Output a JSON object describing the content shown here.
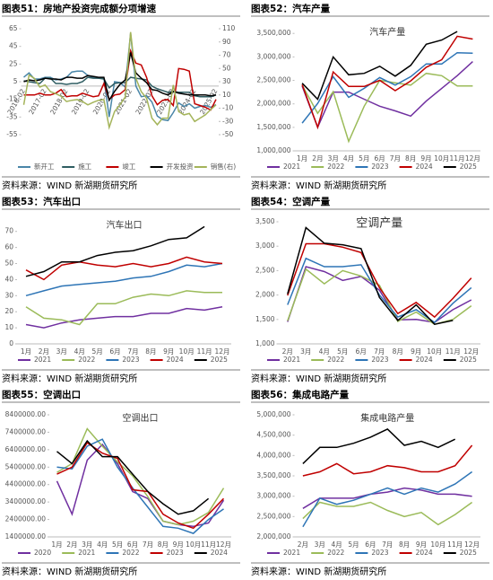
{
  "chart_data": [
    {
      "type": "line",
      "caption": "图表51：房地产投资完成额分项增速",
      "source": "资料来源：WIND 新湖期货研究所",
      "categories": [
        "2016-02",
        null,
        null,
        null,
        "2017-02",
        null,
        null,
        null,
        "2018-02",
        null,
        null,
        null,
        "2019-02",
        null,
        null,
        null,
        "2020-02",
        null,
        null,
        null,
        "2021-02",
        null,
        null,
        null,
        "2022-02",
        null,
        null,
        null,
        "2023-02",
        null,
        null,
        null,
        "2024-02",
        null,
        null,
        null,
        "2025-02"
      ],
      "series": [
        {
          "name": "新开工",
          "color": "#4a86a8",
          "values": [
            10,
            15,
            8,
            8,
            10,
            10,
            7,
            8,
            10,
            16,
            17,
            17,
            12,
            10,
            9,
            9,
            -35,
            5,
            4,
            -1,
            60,
            0,
            -12,
            -11,
            -18,
            -34,
            -38,
            -39,
            -30,
            -19,
            -23,
            -20,
            -25,
            -23,
            -22,
            -24,
            -21
          ]
        },
        {
          "name": "施工",
          "color": "#2f5d62",
          "values": [
            6,
            5,
            4,
            3,
            9,
            9,
            3,
            3,
            2,
            3,
            3,
            5,
            10,
            9,
            9,
            8,
            -2,
            3,
            4,
            4,
            10,
            9,
            8,
            7,
            0,
            -3,
            -5,
            -7,
            -6,
            -7,
            -7,
            -7,
            -11,
            -12,
            -12,
            -12,
            -10
          ]
        },
        {
          "name": "竣工",
          "color": "#c00000",
          "values": [
            -10,
            -10,
            -10,
            -8,
            -10,
            -10,
            -8,
            -4,
            -12,
            -11,
            -11,
            -8,
            -10,
            -12,
            -11,
            3,
            -15,
            -10,
            -9,
            -4,
            40,
            26,
            24,
            10,
            -11,
            -21,
            -16,
            -15,
            -22,
            20,
            19,
            17,
            -20,
            -22,
            -24,
            -27,
            -15
          ]
        },
        {
          "name": "开发投资",
          "color": "#000000",
          "values": [
            5,
            7,
            6,
            7,
            9,
            8,
            8,
            7,
            10,
            10,
            9,
            9,
            12,
            11,
            10,
            10,
            -16,
            -6,
            2,
            7,
            38,
            15,
            9,
            4,
            -4,
            -5,
            -8,
            -10,
            -6,
            -8,
            -9,
            -10,
            -10,
            -10,
            -10,
            -11,
            -10
          ]
        },
        {
          "name": "销售(右)",
          "color": "#a4b45a",
          "axis": "y2",
          "values": [
            -5,
            40,
            35,
            22,
            25,
            15,
            12,
            8,
            0,
            2,
            3,
            0,
            -5,
            -1,
            2,
            3,
            -39,
            -15,
            -5,
            7,
            105,
            35,
            15,
            5,
            -25,
            -35,
            -25,
            -25,
            25,
            -15,
            -20,
            -18,
            -30,
            -25,
            -20,
            -12,
            -5
          ]
        }
      ],
      "ylim": [
        -55,
        65
      ],
      "yticks": [
        65,
        45,
        25,
        5,
        -15,
        -35,
        -55
      ],
      "y2lim": [
        -50,
        110
      ],
      "y2ticks": [
        110,
        90,
        70,
        50,
        30,
        10,
        -10,
        -30,
        -50
      ]
    },
    {
      "type": "line",
      "caption": "图表52：汽车产量",
      "title": "汽车产量",
      "source": "资料来源：WIND 新湖期货研究所",
      "categories": [
        "1月",
        "2月",
        "3月",
        "4月",
        "5月",
        "6月",
        "7月",
        "8月",
        "9月",
        "10月",
        "11月",
        "12月"
      ],
      "series": [
        {
          "name": "2021",
          "color": "#7030a0",
          "values": [
            2380000,
            1500000,
            2250000,
            2250000,
            2100000,
            1950000,
            1850000,
            1740000,
            2060000,
            2330000,
            2600000,
            2900000
          ]
        },
        {
          "name": "2022",
          "color": "#9bbb59",
          "values": [
            2400000,
            1800000,
            2260000,
            1200000,
            1950000,
            2500000,
            2450000,
            2400000,
            2650000,
            2600000,
            2380000,
            2380000
          ]
        },
        {
          "name": "2023",
          "color": "#2e75b6",
          "values": [
            1590000,
            2010000,
            2580000,
            2140000,
            2330000,
            2560000,
            2400000,
            2580000,
            2850000,
            2850000,
            3090000,
            3080000
          ]
        },
        {
          "name": "2024",
          "color": "#c00000",
          "values": [
            2410000,
            1500000,
            2680000,
            2370000,
            2370000,
            2500000,
            2280000,
            2490000,
            2780000,
            2940000,
            3440000,
            3380000
          ]
        },
        {
          "name": "2025",
          "color": "#000000",
          "values": [
            2440000,
            2100000,
            3000000,
            2620000,
            2650000,
            2800000,
            2590000,
            2820000,
            3270000,
            3360000,
            3540000,
            null
          ]
        }
      ],
      "ylim": [
        1000000,
        3600000
      ],
      "yticks": [
        {
          "value": 1000000,
          "label": "1,000,000"
        },
        {
          "value": 1500000,
          "label": "1,500,000"
        },
        {
          "value": 2000000,
          "label": "2,000,000"
        },
        {
          "value": 2500000,
          "label": "2,500,000"
        },
        {
          "value": 3000000,
          "label": "3,000,000"
        },
        {
          "value": 3500000,
          "label": "3,500,000"
        }
      ]
    },
    {
      "type": "line",
      "caption": "图表53：汽车出口",
      "title": "汽车出口",
      "source": "资料来源：WIND 新湖期货研究所",
      "categories": [
        "1月",
        "2月",
        "3月",
        "4月",
        "5月",
        "6月",
        "7月",
        "8月",
        "9月",
        "10月",
        "11月",
        "12月"
      ],
      "series": [
        {
          "name": "2021",
          "color": "#7030a0",
          "values": [
            12,
            10,
            13,
            15,
            16,
            17,
            17,
            19,
            19,
            22,
            21,
            23
          ]
        },
        {
          "name": "2022",
          "color": "#9bbb59",
          "values": [
            23,
            16,
            15,
            12,
            25,
            25,
            29,
            31,
            30,
            33,
            32,
            32
          ]
        },
        {
          "name": "2023",
          "color": "#2e75b6",
          "values": [
            30,
            33,
            36,
            37,
            38,
            39,
            41,
            42,
            45,
            49,
            48,
            50
          ]
        },
        {
          "name": "2024",
          "color": "#c00000",
          "values": [
            46,
            40,
            49,
            51,
            49,
            48,
            50,
            48,
            50,
            54,
            51,
            50
          ]
        },
        {
          "name": "2025",
          "color": "#000000",
          "values": [
            42,
            45,
            51,
            51,
            55,
            57,
            58,
            61,
            65,
            66,
            73,
            null
          ]
        }
      ],
      "ylim": [
        0,
        76
      ],
      "yticks": [
        0,
        10,
        20,
        30,
        40,
        50,
        60,
        70
      ]
    },
    {
      "type": "line",
      "caption": "图表54：空调产量",
      "title": "空调产量",
      "source": "资料来源：WIND 新湖期货研究所",
      "categories": [
        "2月",
        "3月",
        "4月",
        "5月",
        "6月",
        "7月",
        "8月",
        "9月",
        "10月",
        "11月",
        "12月"
      ],
      "series": [
        {
          "name": "2021",
          "color": "#7030a0",
          "values": [
            1450,
            2580,
            2480,
            2300,
            2380,
            2100,
            1490,
            1500,
            1440,
            1700,
            1900
          ]
        },
        {
          "name": "2022",
          "color": "#9bbb59",
          "values": [
            1470,
            2530,
            2230,
            2500,
            2390,
            2200,
            1460,
            1650,
            1400,
            1500,
            1780
          ]
        },
        {
          "name": "2023",
          "color": "#2e75b6",
          "values": [
            1800,
            2750,
            2580,
            2580,
            2620,
            2000,
            1550,
            1700,
            1440,
            1830,
            2150
          ]
        },
        {
          "name": "2024",
          "color": "#c00000",
          "values": [
            1990,
            3050,
            3050,
            2980,
            2870,
            2150,
            1620,
            1850,
            1550,
            1930,
            2350
          ]
        },
        {
          "name": "2025",
          "color": "#000000",
          "values": [
            2020,
            3380,
            3060,
            3030,
            2950,
            1950,
            1480,
            1800,
            1400,
            1480,
            null
          ]
        }
      ],
      "ylim": [
        1000,
        3500
      ],
      "yticks": [
        {
          "value": 1000,
          "label": "1,000"
        },
        {
          "value": 1500,
          "label": "1,500"
        },
        {
          "value": 2000,
          "label": "2,000"
        },
        {
          "value": 2500,
          "label": "2,500"
        },
        {
          "value": 3000,
          "label": "3,000"
        },
        {
          "value": 3500,
          "label": "3,500"
        }
      ]
    },
    {
      "type": "line",
      "caption": "图表55：空调出口",
      "title": "空调出口",
      "source": "资料来源：WIND 新湖期货研究所",
      "categories": [
        "1月",
        "2月",
        "3月",
        "4月",
        "5月",
        "6月",
        "7月",
        "8月",
        "9月",
        "10月",
        "11月",
        "12月"
      ],
      "series": [
        {
          "name": "2020",
          "color": "#7030a0",
          "values": [
            4600000,
            2700000,
            5800000,
            6700000,
            5600000,
            4000000,
            3600000,
            2300000,
            2100000,
            2000000,
            2200000,
            3500000
          ]
        },
        {
          "name": "2021",
          "color": "#9bbb59",
          "values": [
            5100000,
            5600000,
            7600000,
            6600000,
            5700000,
            4900000,
            3700000,
            2300000,
            2100000,
            2300000,
            2800000,
            4200000
          ]
        },
        {
          "name": "2022",
          "color": "#2e75b6",
          "values": [
            5400000,
            5300000,
            6600000,
            7000000,
            5400000,
            4200000,
            3100000,
            2000000,
            1900000,
            1600000,
            2400000,
            3000000
          ]
        },
        {
          "name": "2023",
          "color": "#c00000",
          "values": [
            5000000,
            5400000,
            6800000,
            6200000,
            5900000,
            4100000,
            4000000,
            2700000,
            2200000,
            1900000,
            2700000,
            3600000
          ]
        },
        {
          "name": "2024",
          "color": "#000000",
          "values": [
            6300000,
            5600000,
            6900000,
            6000000,
            6000000,
            5000000,
            4000000,
            3300000,
            2700000,
            2900000,
            3600000,
            null
          ]
        }
      ],
      "ylim": [
        1400000,
        8400000
      ],
      "yticks": [
        {
          "value": 8400000,
          "label": "8400000.00"
        },
        {
          "value": 7400000,
          "label": "7400000.00"
        },
        {
          "value": 6400000,
          "label": "6400000.00"
        },
        {
          "value": 5400000,
          "label": "5400000.00"
        },
        {
          "value": 4400000,
          "label": "4400000.00"
        },
        {
          "value": 3400000,
          "label": "3400000.00"
        },
        {
          "value": 2400000,
          "label": "2400000.00"
        },
        {
          "value": 1400000,
          "label": "1400000.00"
        }
      ]
    },
    {
      "type": "line",
      "caption": "图表56：集成电路产量",
      "title": "集成电路产量",
      "source": "资料来源：WIND 新湖期货研究所",
      "categories": [
        "2月",
        "3月",
        "4月",
        "5月",
        "6月",
        "7月",
        "8月",
        "9月",
        "10月",
        "11月",
        "12月"
      ],
      "series": [
        {
          "name": "2021",
          "color": "#7030a0",
          "values": [
            2700000,
            2950000,
            2950000,
            2950000,
            3050000,
            3100000,
            3200000,
            3150000,
            3050000,
            3050000,
            3000000
          ]
        },
        {
          "name": "2022",
          "color": "#9bbb59",
          "values": [
            2450000,
            2850000,
            2750000,
            2750000,
            2850000,
            2650000,
            2500000,
            2600000,
            2300000,
            2550000,
            2850000
          ]
        },
        {
          "name": "2023",
          "color": "#2e75b6",
          "values": [
            2250000,
            2950000,
            2800000,
            2900000,
            3050000,
            3200000,
            3050000,
            3200000,
            3100000,
            3300000,
            3600000
          ]
        },
        {
          "name": "2024",
          "color": "#c00000",
          "values": [
            3500000,
            3600000,
            3800000,
            3550000,
            3600000,
            3750000,
            3700000,
            3600000,
            3600000,
            3750000,
            4250000
          ]
        },
        {
          "name": "2025",
          "color": "#000000",
          "values": [
            3800000,
            4200000,
            4200000,
            4300000,
            4450000,
            4650000,
            4250000,
            4350000,
            4200000,
            4400000,
            null
          ]
        }
      ],
      "ylim": [
        2000000,
        5000000
      ],
      "yticks": [
        {
          "value": 2000000,
          "label": "2,000,000"
        },
        {
          "value": 2500000,
          "label": "2,500,000"
        },
        {
          "value": 3000000,
          "label": "3,000,000"
        },
        {
          "value": 3500000,
          "label": "3,500,000"
        },
        {
          "value": 4000000,
          "label": "4,000,000"
        },
        {
          "value": 4500000,
          "label": "4,500,000"
        },
        {
          "value": 5000000,
          "label": "5,000,000"
        }
      ]
    }
  ]
}
